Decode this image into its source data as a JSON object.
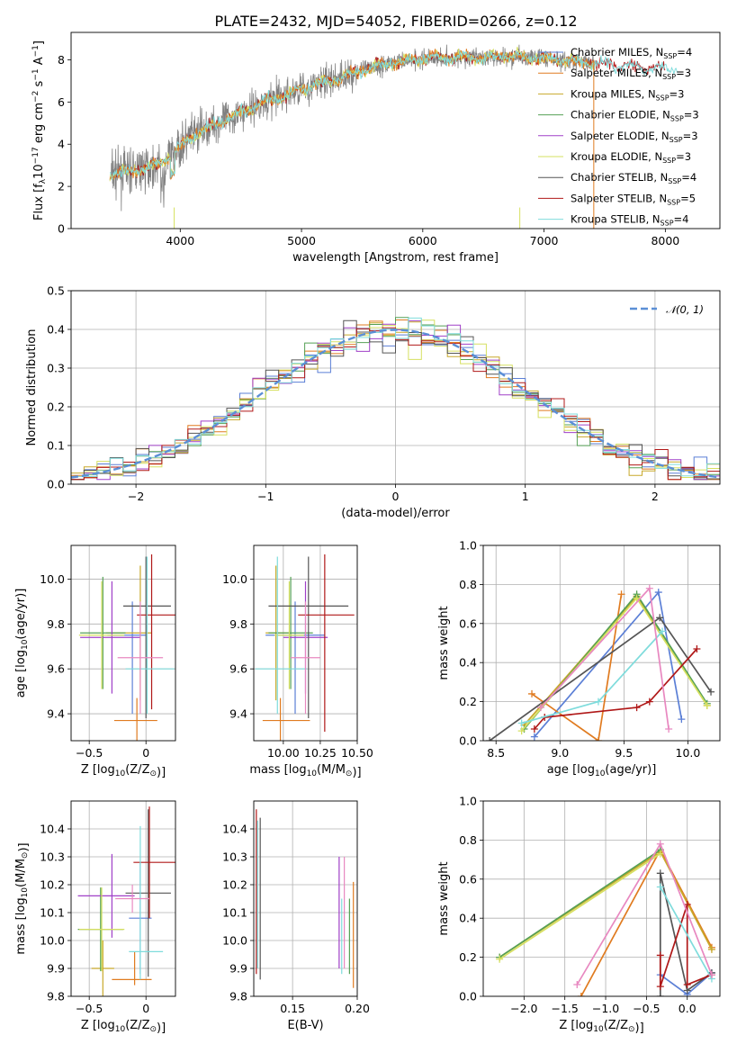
{
  "figure": {
    "title": "PLATE=2432, MJD=54052, FIBERID=0266, z=0.12"
  },
  "colors": {
    "Chabrier MILES": "#5b7fd6",
    "Salpeter MILES": "#e07b20",
    "Kroupa MILES": "#c8a82a",
    "Chabrier ELODIE": "#55a055",
    "Salpeter ELODIE": "#a040c8",
    "Kroupa ELODIE": "#d6e060",
    "Chabrier STELIB": "#555555",
    "Salpeter STELIB": "#b01818",
    "Kroupa STELIB": "#7fdcdc",
    "pink": "#e888c0"
  },
  "chart_data": [
    {
      "id": "spectrum",
      "type": "line",
      "xlabel": "wavelength [Angstrom, rest frame]",
      "ylabel": "Flux [f_λ 10^-17 erg cm^-2 s^-1 A^-1]",
      "xlim": [
        3100,
        8450
      ],
      "ylim": [
        0,
        9.3
      ],
      "xticks": [
        4000,
        5000,
        6000,
        7000,
        8000
      ],
      "yticks": [
        0,
        2,
        4,
        6,
        8
      ],
      "legend": {
        "placement": "top-right",
        "entries": [
          "Chabrier MILES, N_SSP=4",
          "Salpeter MILES, N_SSP=3",
          "Kroupa MILES, N_SSP=3",
          "Chabrier ELODIE, N_SSP=3",
          "Salpeter ELODIE, N_SSP=3",
          "Kroupa ELODIE, N_SSP=3",
          "Chabrier STELIB, N_SSP=4",
          "Salpeter STELIB, N_SSP=5",
          "Kroupa STELIB, N_SSP=4"
        ]
      },
      "continuum": [
        [
          3420,
          2.6
        ],
        [
          3600,
          2.7
        ],
        [
          3800,
          3.0
        ],
        [
          3950,
          3.6
        ],
        [
          4100,
          4.4
        ],
        [
          4300,
          5.0
        ],
        [
          4500,
          5.5
        ],
        [
          4700,
          6.0
        ],
        [
          4900,
          6.4
        ],
        [
          5100,
          6.8
        ],
        [
          5300,
          7.1
        ],
        [
          5500,
          7.5
        ],
        [
          5700,
          7.8
        ],
        [
          5900,
          8.0
        ],
        [
          6100,
          8.1
        ],
        [
          6300,
          8.1
        ],
        [
          6500,
          8.1
        ],
        [
          6700,
          8.2
        ],
        [
          6900,
          8.1
        ],
        [
          7100,
          8.0
        ],
        [
          7300,
          7.9
        ],
        [
          7500,
          7.8
        ],
        [
          7700,
          7.7
        ],
        [
          7900,
          7.6
        ],
        [
          8050,
          7.6
        ]
      ]
    },
    {
      "id": "residuals",
      "type": "bar",
      "xlabel": "(data-model)/error",
      "ylabel": "Normed distribution",
      "xlim": [
        -2.5,
        2.5
      ],
      "ylim": [
        0,
        0.5
      ],
      "xticks": [
        -2,
        -1,
        0,
        1,
        2
      ],
      "yticks": [
        0.0,
        0.1,
        0.2,
        0.3,
        0.4,
        0.5
      ],
      "legend": {
        "placement": "top-right",
        "entries": [
          "𝒩(0, 1)"
        ]
      },
      "gaussian": {
        "mean": 0,
        "sigma": 1
      },
      "bin_width": 0.1,
      "bin_start": -2.5,
      "series_by": [
        "Chabrier MILES",
        "Salpeter MILES",
        "Kroupa MILES",
        "Chabrier ELODIE",
        "Salpeter ELODIE",
        "Kroupa ELODIE",
        "Chabrier STELIB",
        "Salpeter STELIB",
        "Kroupa STELIB"
      ]
    },
    {
      "id": "age_vs_Z",
      "type": "scatter",
      "xlabel": "Z [log10(Z/Z⊙)]",
      "ylabel": "age  [log10(age/yr)]",
      "xlim": [
        -0.66,
        0.26
      ],
      "ylim": [
        9.28,
        10.15
      ],
      "xticks": [
        -0.5,
        0.0
      ],
      "yticks": [
        9.4,
        9.6,
        9.8,
        10.0
      ],
      "points": [
        {
          "c": "Chabrier MILES",
          "x": -0.12,
          "y": 9.75,
          "xerr": [
            0.22,
            0.12
          ],
          "yerr": [
            0.35,
            0.15
          ]
        },
        {
          "c": "Salpeter MILES",
          "x": -0.08,
          "y": 9.37,
          "xerr": [
            0.2,
            0.18
          ],
          "yerr": [
            0.15,
            0.1
          ]
        },
        {
          "c": "Kroupa MILES",
          "x": -0.05,
          "y": 9.76,
          "xerr": [
            0.3,
            0.1
          ],
          "yerr": [
            0.3,
            0.3
          ]
        },
        {
          "c": "Chabrier ELODIE",
          "x": -0.38,
          "y": 9.76,
          "xerr": [
            0.2,
            0.2
          ],
          "yerr": [
            0.25,
            0.25
          ]
        },
        {
          "c": "Salpeter ELODIE",
          "x": -0.3,
          "y": 9.74,
          "xerr": [
            0.28,
            0.25
          ],
          "yerr": [
            0.25,
            0.25
          ]
        },
        {
          "c": "Kroupa ELODIE",
          "x": -0.39,
          "y": 9.75,
          "xerr": [
            0.2,
            0.2
          ],
          "yerr": [
            0.24,
            0.24
          ]
        },
        {
          "c": "Chabrier STELIB",
          "x": 0.0,
          "y": 9.88,
          "xerr": [
            0.2,
            0.22
          ],
          "yerr": [
            0.5,
            0.22
          ]
        },
        {
          "c": "Salpeter STELIB",
          "x": 0.05,
          "y": 9.84,
          "xerr": [
            0.13,
            0.25
          ],
          "yerr": [
            0.42,
            0.27
          ]
        },
        {
          "c": "Kroupa STELIB",
          "x": 0.01,
          "y": 9.6,
          "xerr": [
            0.19,
            0.24
          ],
          "yerr": [
            0.2,
            0.5
          ]
        },
        {
          "c": "pink",
          "x": -0.05,
          "y": 9.65,
          "xerr": [
            0.2,
            0.2
          ],
          "yerr": [
            0.25,
            0.25
          ]
        }
      ]
    },
    {
      "id": "age_vs_mass",
      "type": "scatter",
      "xlabel": "mass [log10(M/M⊙)]",
      "ylabel": "",
      "xlim": [
        9.8,
        10.5
      ],
      "ylim": [
        9.28,
        10.15
      ],
      "xticks": [
        10.0,
        10.25,
        10.5
      ],
      "yticks": [
        9.4,
        9.6,
        9.8,
        10.0
      ],
      "points": [
        {
          "c": "Chabrier MILES",
          "x": 10.08,
          "y": 9.75,
          "xerr": [
            0.2,
            0.2
          ],
          "yerr": [
            0.35,
            0.15
          ]
        },
        {
          "c": "Salpeter MILES",
          "x": 9.98,
          "y": 9.37,
          "xerr": [
            0.12,
            0.2
          ],
          "yerr": [
            0.15,
            0.1
          ]
        },
        {
          "c": "Kroupa MILES",
          "x": 9.95,
          "y": 9.76,
          "xerr": [
            0.07,
            0.1
          ],
          "yerr": [
            0.3,
            0.3
          ]
        },
        {
          "c": "Chabrier ELODIE",
          "x": 10.05,
          "y": 9.76,
          "xerr": [
            0.15,
            0.15
          ],
          "yerr": [
            0.25,
            0.25
          ]
        },
        {
          "c": "Salpeter ELODIE",
          "x": 10.15,
          "y": 9.74,
          "xerr": [
            0.15,
            0.15
          ],
          "yerr": [
            0.25,
            0.25
          ]
        },
        {
          "c": "Kroupa ELODIE",
          "x": 10.04,
          "y": 9.75,
          "xerr": [
            0.1,
            0.1
          ],
          "yerr": [
            0.24,
            0.24
          ]
        },
        {
          "c": "Chabrier STELIB",
          "x": 10.17,
          "y": 9.88,
          "xerr": [
            0.27,
            0.27
          ],
          "yerr": [
            0.5,
            0.22
          ]
        },
        {
          "c": "Salpeter STELIB",
          "x": 10.28,
          "y": 9.84,
          "xerr": [
            0.18,
            0.2
          ],
          "yerr": [
            0.52,
            0.27
          ]
        },
        {
          "c": "Kroupa STELIB",
          "x": 9.96,
          "y": 9.6,
          "xerr": [
            0.15,
            0.2
          ],
          "yerr": [
            0.2,
            0.5
          ]
        },
        {
          "c": "pink",
          "x": 10.15,
          "y": 9.65,
          "xerr": [
            0.1,
            0.1
          ],
          "yerr": [
            0.25,
            0.25
          ]
        }
      ]
    },
    {
      "id": "weight_vs_age",
      "type": "line",
      "xlabel": "age  [log10(age/yr)]",
      "ylabel": "mass weight",
      "xlim": [
        8.4,
        10.25
      ],
      "ylim": [
        0,
        1.0
      ],
      "xticks": [
        8.5,
        9.0,
        9.5,
        10.0
      ],
      "yticks": [
        0.0,
        0.2,
        0.4,
        0.6,
        0.8,
        1.0
      ],
      "series": [
        {
          "c": "Chabrier MILES",
          "points": [
            [
              8.8,
              0.02
            ],
            [
              9.77,
              0.76
            ],
            [
              9.95,
              0.11
            ]
          ]
        },
        {
          "c": "Salpeter MILES",
          "points": [
            [
              8.78,
              0.24
            ],
            [
              9.3,
              0.0
            ],
            [
              9.48,
              0.75
            ]
          ]
        },
        {
          "c": "Kroupa MILES",
          "points": [
            [
              8.72,
              0.08
            ],
            [
              9.6,
              0.74
            ],
            [
              10.15,
              0.18
            ]
          ]
        },
        {
          "c": "Chabrier ELODIE",
          "points": [
            [
              8.72,
              0.06
            ],
            [
              9.6,
              0.75
            ],
            [
              10.15,
              0.19
            ]
          ]
        },
        {
          "c": "Kroupa ELODIE",
          "points": [
            [
              8.7,
              0.05
            ],
            [
              9.6,
              0.73
            ],
            [
              10.15,
              0.18
            ]
          ]
        },
        {
          "c": "Chabrier STELIB",
          "points": [
            [
              8.45,
              0.0
            ],
            [
              9.78,
              0.63
            ],
            [
              10.18,
              0.25
            ]
          ]
        },
        {
          "c": "Salpeter STELIB",
          "points": [
            [
              8.8,
              0.06
            ],
            [
              8.88,
              0.12
            ],
            [
              9.6,
              0.17
            ],
            [
              9.7,
              0.2
            ],
            [
              10.07,
              0.47
            ]
          ]
        },
        {
          "c": "Kroupa STELIB",
          "points": [
            [
              8.7,
              0.09
            ],
            [
              9.3,
              0.2
            ],
            [
              9.8,
              0.56
            ]
          ]
        },
        {
          "c": "pink",
          "points": [
            [
              8.85,
              0.17
            ],
            [
              9.7,
              0.78
            ],
            [
              9.85,
              0.06
            ]
          ]
        }
      ]
    },
    {
      "id": "mass_vs_Z",
      "type": "scatter",
      "xlabel": "Z [log10(Z/Z⊙)]",
      "ylabel": "mass [log10(M/M⊙)]",
      "xlim": [
        -0.66,
        0.26
      ],
      "ylim": [
        9.8,
        10.5
      ],
      "xticks": [
        -0.5,
        0.0
      ],
      "yticks": [
        9.8,
        9.9,
        10.0,
        10.1,
        10.2,
        10.3,
        10.4
      ],
      "points": [
        {
          "c": "Chabrier MILES",
          "x": -0.05,
          "y": 10.08,
          "xerr": [
            0.1,
            0.1
          ],
          "yerr": [
            0.2,
            0.2
          ]
        },
        {
          "c": "Salpeter MILES",
          "x": -0.1,
          "y": 9.86,
          "xerr": [
            0.2,
            0.15
          ],
          "yerr": [
            0.02,
            0.1
          ]
        },
        {
          "c": "Kroupa MILES",
          "x": -0.38,
          "y": 9.9,
          "xerr": [
            0.1,
            0.1
          ],
          "yerr": [
            0.1,
            0.1
          ]
        },
        {
          "c": "Chabrier ELODIE",
          "x": -0.4,
          "y": 10.04,
          "xerr": [
            0.2,
            0.2
          ],
          "yerr": [
            0.15,
            0.15
          ]
        },
        {
          "c": "Salpeter ELODIE",
          "x": -0.3,
          "y": 10.16,
          "xerr": [
            0.3,
            0.2
          ],
          "yerr": [
            0.15,
            0.15
          ]
        },
        {
          "c": "Kroupa ELODIE",
          "x": -0.39,
          "y": 10.04,
          "xerr": [
            0.2,
            0.2
          ],
          "yerr": [
            0.15,
            0.15
          ]
        },
        {
          "c": "Chabrier STELIB",
          "x": 0.02,
          "y": 10.17,
          "xerr": [
            0.2,
            0.2
          ],
          "yerr": [
            0.3,
            0.3
          ]
        },
        {
          "c": "Salpeter STELIB",
          "x": 0.03,
          "y": 10.28,
          "xerr": [
            0.14,
            0.25
          ],
          "yerr": [
            0.2,
            0.2
          ]
        },
        {
          "c": "Kroupa STELIB",
          "x": -0.05,
          "y": 9.96,
          "xerr": [
            0.1,
            0.2
          ],
          "yerr": [
            0.1,
            0.45
          ]
        },
        {
          "c": "pink",
          "x": -0.12,
          "y": 10.15,
          "xerr": [
            0.15,
            0.15
          ],
          "yerr": [
            0.05,
            0.05
          ]
        }
      ]
    },
    {
      "id": "mass_vs_ebv",
      "type": "scatter",
      "xlabel": "E(B-V)",
      "ylabel": "",
      "xlim": [
        0.12,
        0.2
      ],
      "ylim": [
        9.8,
        10.5
      ],
      "xticks": [
        0.15,
        0.2
      ],
      "yticks": [
        9.8,
        9.9,
        10.0,
        10.1,
        10.2,
        10.3,
        10.4
      ],
      "vlines": [
        {
          "c": "Salpeter STELIB",
          "x": 0.122,
          "y": [
            9.88,
            10.47
          ]
        },
        {
          "c": "Kroupa STELIB",
          "x": 0.123,
          "y": [
            9.9,
            10.43
          ]
        },
        {
          "c": "Chabrier STELIB",
          "x": 0.125,
          "y": [
            9.86,
            10.44
          ]
        },
        {
          "c": "Salpeter ELODIE",
          "x": 0.186,
          "y": [
            9.9,
            10.3
          ]
        },
        {
          "c": "Kroupa STELIB",
          "x": 0.188,
          "y": [
            9.88,
            10.15
          ]
        },
        {
          "c": "pink",
          "x": 0.19,
          "y": [
            9.9,
            10.3
          ]
        },
        {
          "c": "Chabrier ELODIE",
          "x": 0.194,
          "y": [
            9.88,
            10.15
          ]
        },
        {
          "c": "Salpeter MILES",
          "x": 0.197,
          "y": [
            9.83,
            10.21
          ]
        }
      ]
    },
    {
      "id": "weight_vs_Z",
      "type": "line",
      "xlabel": "Z [log10(Z/Z⊙)]",
      "ylabel": "mass weight",
      "xlim": [
        -2.5,
        0.4
      ],
      "ylim": [
        0,
        1.0
      ],
      "xticks": [
        -2.0,
        -1.5,
        -1.0,
        -0.5,
        0.0
      ],
      "yticks": [
        0.0,
        0.2,
        0.4,
        0.6,
        0.8,
        1.0
      ],
      "series": [
        {
          "c": "Chabrier MILES",
          "points": [
            [
              -0.33,
              0.11
            ],
            [
              0.0,
              0.01
            ],
            [
              0.3,
              0.12
            ]
          ]
        },
        {
          "c": "Salpeter MILES",
          "points": [
            [
              -1.3,
              0.0
            ],
            [
              -0.33,
              0.75
            ],
            [
              0.3,
              0.25
            ]
          ]
        },
        {
          "c": "Kroupa MILES",
          "points": [
            [
              -2.3,
              0.2
            ],
            [
              -0.33,
              0.74
            ],
            [
              0.3,
              0.24
            ]
          ]
        },
        {
          "c": "Chabrier ELODIE",
          "points": [
            [
              -2.3,
              0.2
            ],
            [
              -0.33,
              0.75
            ]
          ]
        },
        {
          "c": "Kroupa ELODIE",
          "points": [
            [
              -2.3,
              0.19
            ],
            [
              -0.33,
              0.73
            ]
          ]
        },
        {
          "c": "Chabrier STELIB",
          "points": [
            [
              -0.33,
              0.0
            ],
            [
              -0.33,
              0.63
            ],
            [
              0.0,
              0.03
            ],
            [
              0.3,
              0.12
            ]
          ]
        },
        {
          "c": "Salpeter STELIB",
          "points": [
            [
              -0.33,
              0.21
            ],
            [
              -0.33,
              0.05
            ],
            [
              0.0,
              0.47
            ],
            [
              0.0,
              0.06
            ],
            [
              0.3,
              0.11
            ]
          ]
        },
        {
          "c": "Kroupa STELIB",
          "points": [
            [
              -0.33,
              0.56
            ],
            [
              0.3,
              0.09
            ]
          ]
        },
        {
          "c": "pink",
          "points": [
            [
              -1.35,
              0.06
            ],
            [
              -0.33,
              0.78
            ],
            [
              0.3,
              0.11
            ]
          ]
        }
      ]
    }
  ]
}
